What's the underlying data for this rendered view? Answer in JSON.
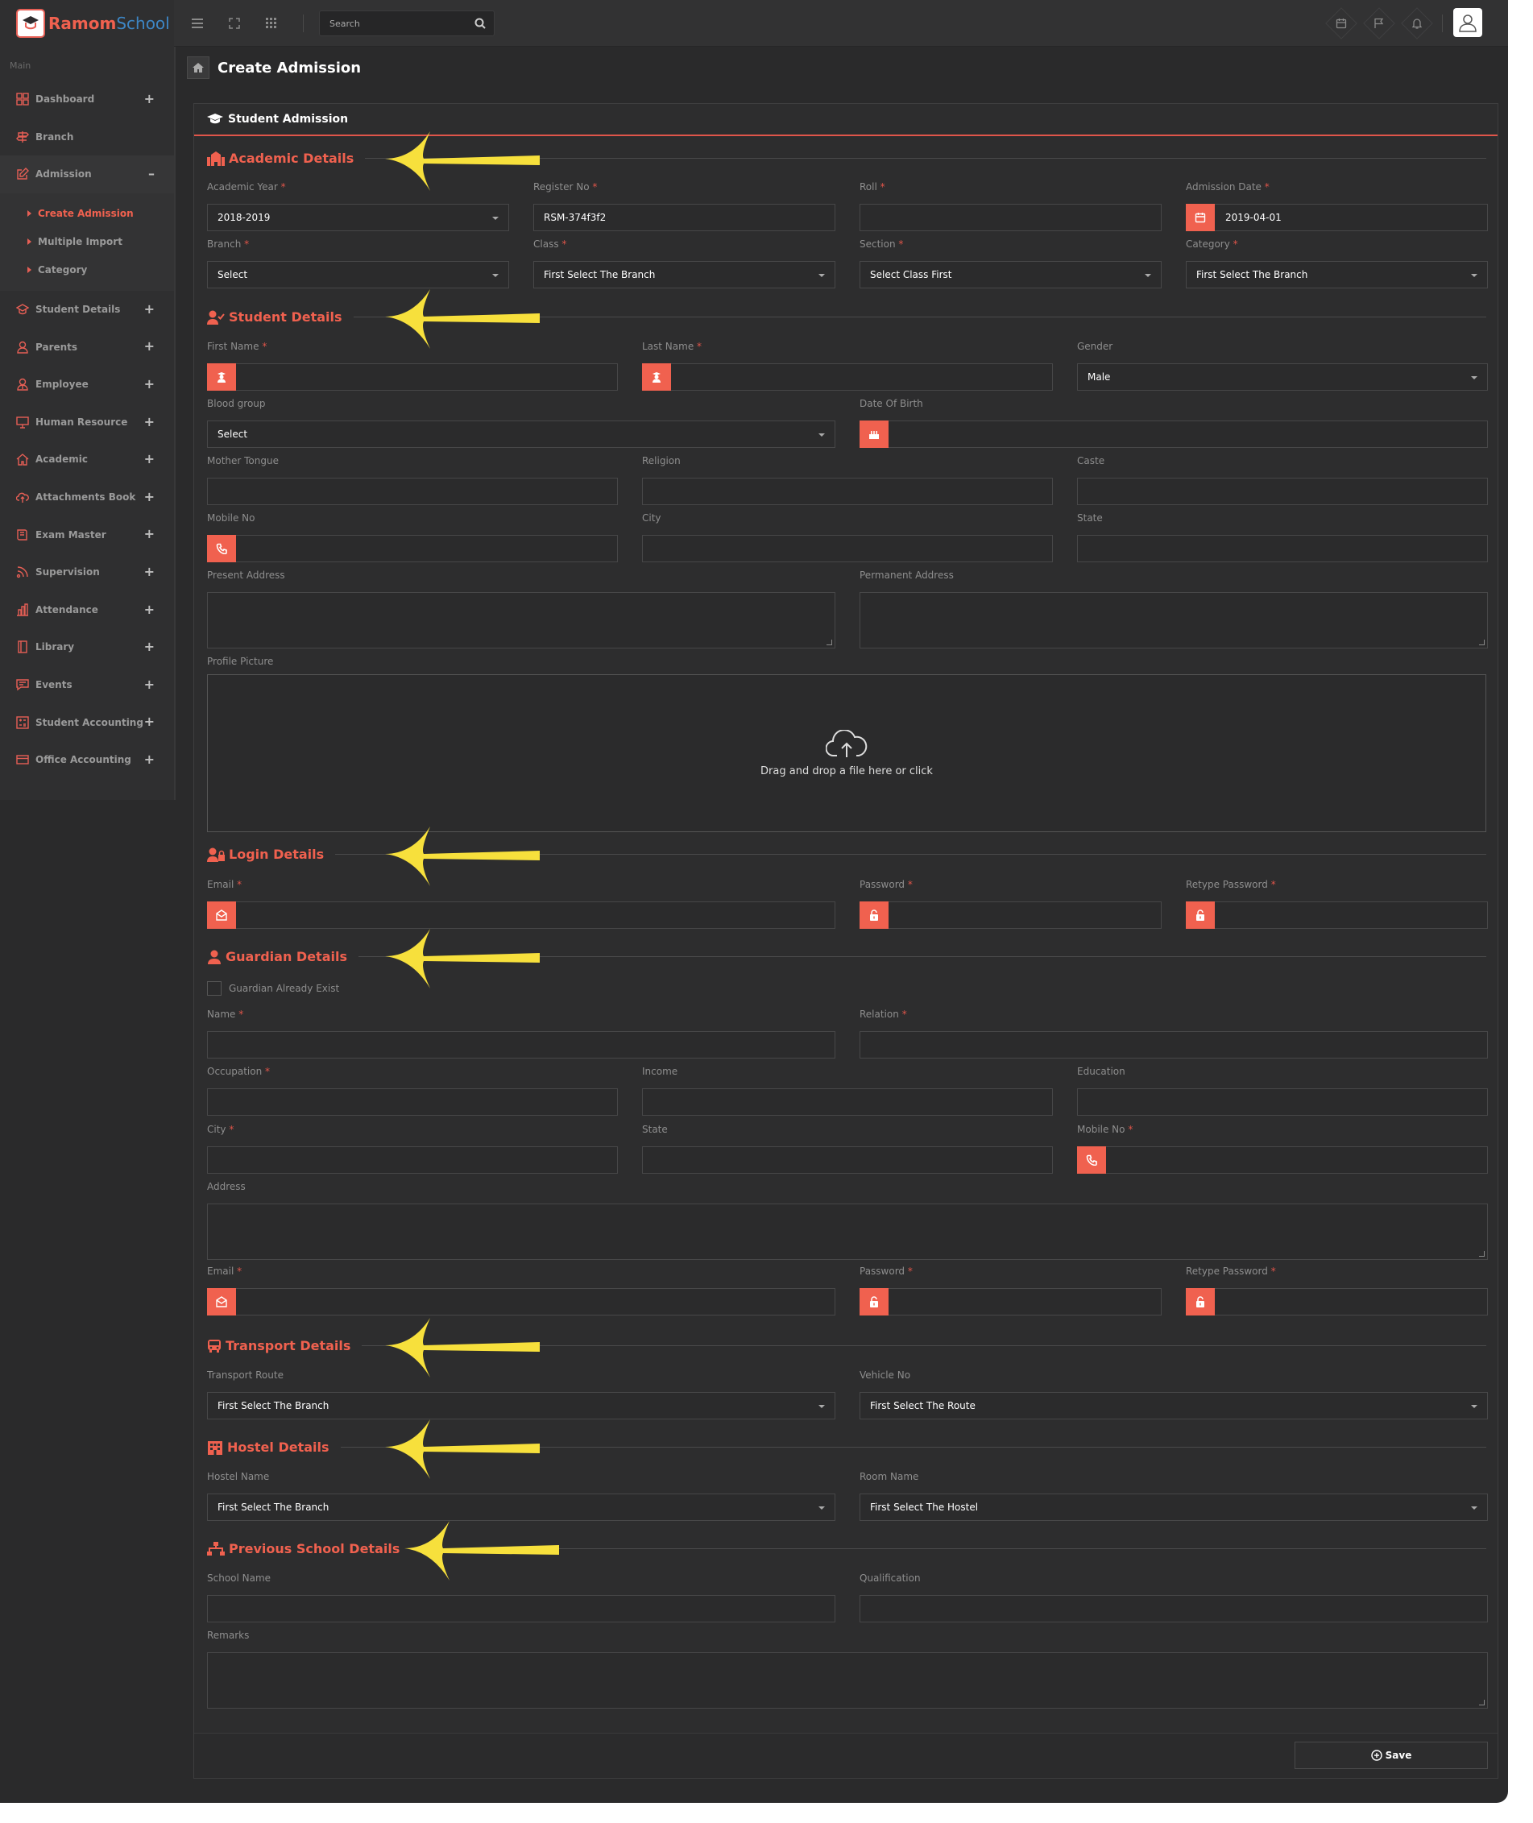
{
  "app": {
    "logo_primary": "Ramom",
    "logo_secondary": "School",
    "search_placeholder": "Search"
  },
  "colors": {
    "accent": "#f0614f",
    "background": "#2a2a2b",
    "panel": "#2d2d2e",
    "arrow": "#f7e03c"
  },
  "sidebar": {
    "heading": "Main",
    "items": [
      {
        "label": "Dashboard",
        "icon": "grid-icon",
        "expander": "+"
      },
      {
        "label": "Branch",
        "icon": "signpost-icon",
        "expander": ""
      },
      {
        "label": "Admission",
        "icon": "edit-icon",
        "expander": "–"
      },
      {
        "label": "Student Details",
        "icon": "graduation-cap-icon",
        "expander": "+"
      },
      {
        "label": "Parents",
        "icon": "user-icon",
        "expander": "+"
      },
      {
        "label": "Employee",
        "icon": "user-tie-icon",
        "expander": "+"
      },
      {
        "label": "Human Resource",
        "icon": "monitor-icon",
        "expander": "+"
      },
      {
        "label": "Academic",
        "icon": "home-icon",
        "expander": "+"
      },
      {
        "label": "Attachments Book",
        "icon": "cloud-upload-icon",
        "expander": "+"
      },
      {
        "label": "Exam Master",
        "icon": "book-icon",
        "expander": "+"
      },
      {
        "label": "Supervision",
        "icon": "rss-icon",
        "expander": "+"
      },
      {
        "label": "Attendance",
        "icon": "bar-chart-icon",
        "expander": "+"
      },
      {
        "label": "Library",
        "icon": "book-open-icon",
        "expander": "+"
      },
      {
        "label": "Events",
        "icon": "chat-icon",
        "expander": "+"
      },
      {
        "label": "Student Accounting",
        "icon": "calculator-icon",
        "expander": "+"
      },
      {
        "label": "Office Accounting",
        "icon": "credit-card-icon",
        "expander": "+"
      }
    ],
    "admission_sub": [
      "Create Admission",
      "Multiple Import",
      "Category"
    ]
  },
  "page": {
    "title": "Create Admission",
    "panel_title": "Student Admission",
    "save_label": "Save"
  },
  "sections": {
    "academic": "Academic Details",
    "student": "Student Details",
    "login": "Login Details",
    "guardian": "Guardian Details",
    "transport": "Transport Details",
    "hostel": "Hostel Details",
    "previous": "Previous School Details"
  },
  "academic": {
    "academic_year": {
      "label": "Academic Year",
      "value": "2018-2019"
    },
    "register_no": {
      "label": "Register No",
      "value": "RSM-374f3f2"
    },
    "roll": {
      "label": "Roll",
      "value": ""
    },
    "admission_date": {
      "label": "Admission Date",
      "value": "2019-04-01"
    },
    "branch": {
      "label": "Branch",
      "value": "Select"
    },
    "class": {
      "label": "Class",
      "value": "First Select The Branch"
    },
    "section": {
      "label": "Section",
      "value": "Select Class First"
    },
    "category": {
      "label": "Category",
      "value": "First Select The Branch"
    }
  },
  "student": {
    "first_name": "First Name",
    "last_name": "Last Name",
    "gender": {
      "label": "Gender",
      "value": "Male"
    },
    "blood_group": {
      "label": "Blood group",
      "value": "Select"
    },
    "dob": "Date Of Birth",
    "mother_tongue": "Mother Tongue",
    "religion": "Religion",
    "caste": "Caste",
    "mobile": "Mobile No",
    "city": "City",
    "state": "State",
    "present_address": "Present Address",
    "permanent_address": "Permanent Address",
    "profile_picture": "Profile Picture",
    "drop_text": "Drag and drop a file here or click"
  },
  "login": {
    "email": "Email",
    "password": "Password",
    "retype": "Retype Password"
  },
  "guardian": {
    "exist": "Guardian Already Exist",
    "name": "Name",
    "relation": "Relation",
    "occupation": "Occupation",
    "income": "Income",
    "education": "Education",
    "city": "City",
    "state": "State",
    "mobile": "Mobile No",
    "address": "Address",
    "email": "Email",
    "password": "Password",
    "retype": "Retype Password"
  },
  "transport": {
    "route": {
      "label": "Transport Route",
      "value": "First Select The Branch"
    },
    "vehicle": {
      "label": "Vehicle No",
      "value": "First Select The Route"
    }
  },
  "hostel": {
    "name": {
      "label": "Hostel Name",
      "value": "First Select The Branch"
    },
    "room": {
      "label": "Room Name",
      "value": "First Select The Hostel"
    }
  },
  "previous": {
    "school": "School Name",
    "qualification": "Qualification",
    "remarks": "Remarks"
  }
}
